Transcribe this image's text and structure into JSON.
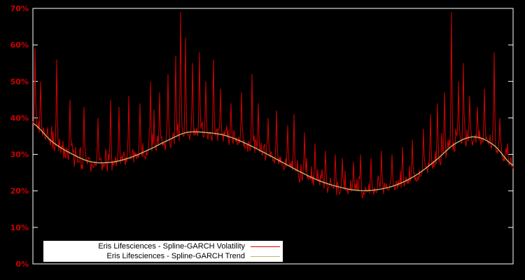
{
  "figure": {
    "colors": {
      "background": "#000000",
      "frame": "#ffffff",
      "tick_labels": "#cc0000"
    }
  },
  "chart_data": {
    "type": "line",
    "title": "",
    "xlabel": "",
    "ylabel": "",
    "ylim": [
      0,
      70
    ],
    "ytick_labels": [
      "0%",
      "10%",
      "20%",
      "30%",
      "40%",
      "50%",
      "60%",
      "70%"
    ],
    "xtick_labels": [],
    "grid": false,
    "legend_position": "bottom-left",
    "series": [
      {
        "name": "Eris Lifesciences - Spline-GARCH Volatility",
        "color": "#d40000",
        "style": "noisy"
      },
      {
        "name": "Eris Lifesciences - Spline-GARCH Trend",
        "color": "#bdb76b",
        "style": "smooth"
      }
    ],
    "trend_knots": {
      "x": [
        0.0,
        0.04,
        0.08,
        0.12,
        0.16,
        0.2,
        0.24,
        0.28,
        0.32,
        0.36,
        0.4,
        0.44,
        0.48,
        0.52,
        0.56,
        0.6,
        0.64,
        0.68,
        0.72,
        0.76,
        0.8,
        0.84,
        0.88,
        0.92,
        0.96,
        1.0
      ],
      "y": [
        38.5,
        33.5,
        30.2,
        28.0,
        27.8,
        29.0,
        31.2,
        33.8,
        36.0,
        36.0,
        35.2,
        33.2,
        30.6,
        27.8,
        25.0,
        22.6,
        21.0,
        20.1,
        20.4,
        21.8,
        24.5,
        28.5,
        33.0,
        34.8,
        32.5,
        27.0
      ]
    },
    "spikes": [
      [
        0.004,
        59
      ],
      [
        0.016,
        50
      ],
      [
        0.05,
        56
      ],
      [
        0.077,
        45
      ],
      [
        0.106,
        43
      ],
      [
        0.135,
        40
      ],
      [
        0.162,
        45
      ],
      [
        0.18,
        43
      ],
      [
        0.2,
        46
      ],
      [
        0.223,
        44
      ],
      [
        0.245,
        50
      ],
      [
        0.264,
        47
      ],
      [
        0.281,
        52
      ],
      [
        0.297,
        57
      ],
      [
        0.307,
        69
      ],
      [
        0.318,
        62
      ],
      [
        0.332,
        55
      ],
      [
        0.347,
        58
      ],
      [
        0.36,
        50
      ],
      [
        0.376,
        56
      ],
      [
        0.39,
        48
      ],
      [
        0.412,
        44
      ],
      [
        0.434,
        47
      ],
      [
        0.456,
        52
      ],
      [
        0.47,
        44
      ],
      [
        0.49,
        40
      ],
      [
        0.507,
        42
      ],
      [
        0.53,
        38
      ],
      [
        0.544,
        41
      ],
      [
        0.565,
        36
      ],
      [
        0.587,
        33
      ],
      [
        0.61,
        31
      ],
      [
        0.63,
        30
      ],
      [
        0.645,
        29
      ],
      [
        0.667,
        28
      ],
      [
        0.682,
        30
      ],
      [
        0.704,
        29
      ],
      [
        0.726,
        31
      ],
      [
        0.748,
        30
      ],
      [
        0.77,
        32
      ],
      [
        0.79,
        34
      ],
      [
        0.813,
        37
      ],
      [
        0.828,
        41
      ],
      [
        0.842,
        44
      ],
      [
        0.857,
        47
      ],
      [
        0.872,
        69
      ],
      [
        0.886,
        50
      ],
      [
        0.896,
        55
      ],
      [
        0.91,
        46
      ],
      [
        0.925,
        43
      ],
      [
        0.94,
        48
      ],
      [
        0.96,
        58
      ],
      [
        0.973,
        40
      ],
      [
        0.988,
        33
      ]
    ],
    "noise": {
      "seed": 11,
      "samples": 687,
      "std": 1.9,
      "spike_prob": 0.05,
      "spike_scale": 9
    },
    "volatility_range_approx": [
      18,
      69
    ]
  }
}
